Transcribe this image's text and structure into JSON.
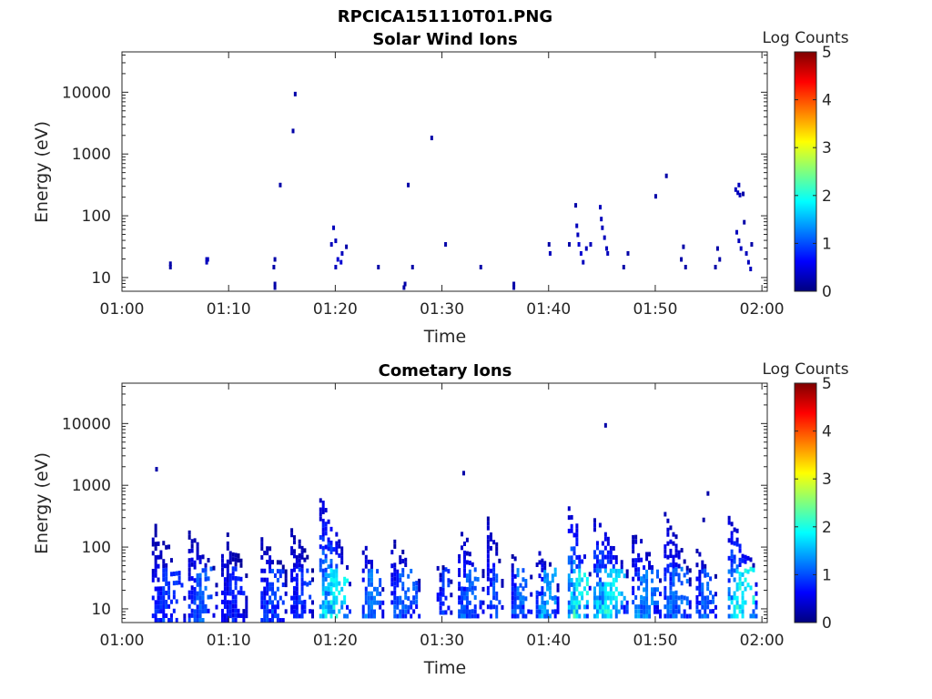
{
  "figure_title": "RPCICA151110T01.PNG",
  "colormap_stops": [
    "#00007f",
    "#0000ff",
    "#007fff",
    "#00ffff",
    "#7fff7f",
    "#ffff00",
    "#ff7f00",
    "#ff0000",
    "#7f0000"
  ],
  "chart_data": [
    {
      "type": "heatmap",
      "title": "Solar Wind Ions",
      "xlabel": "Time",
      "ylabel": "Energy (eV)",
      "x_ticks": [
        "01:00",
        "01:10",
        "01:20",
        "01:30",
        "01:40",
        "01:50",
        "02:00"
      ],
      "x_tick_minutes": [
        0,
        10,
        20,
        30,
        40,
        50,
        60
      ],
      "y_ticks": [
        "10",
        "100",
        "1000",
        "10000"
      ],
      "y_tick_values": [
        10,
        100,
        1000,
        10000
      ],
      "y_scale": "log",
      "ylim": [
        6,
        45000
      ],
      "xlim_minutes": [
        0,
        60.5
      ],
      "colorbar": {
        "label": "Log Counts",
        "ticks": [
          "0",
          "1",
          "2",
          "3",
          "4",
          "5"
        ],
        "range": [
          0,
          5
        ]
      },
      "points": [
        {
          "t": 4.5,
          "e": 15,
          "v": 0.2
        },
        {
          "t": 4.5,
          "e": 17,
          "v": 0.2
        },
        {
          "t": 7.9,
          "e": 18,
          "v": 0.3
        },
        {
          "t": 8.0,
          "e": 20,
          "v": 0.3
        },
        {
          "t": 7.9,
          "e": 20,
          "v": 0.3
        },
        {
          "t": 14.2,
          "e": 15,
          "v": 0.2
        },
        {
          "t": 14.3,
          "e": 20,
          "v": 0.2
        },
        {
          "t": 14.3,
          "e": 8,
          "v": 0.2
        },
        {
          "t": 14.3,
          "e": 7,
          "v": 0.2
        },
        {
          "t": 14.8,
          "e": 320,
          "v": 0.2
        },
        {
          "t": 16.0,
          "e": 2400,
          "v": 0.2
        },
        {
          "t": 16.2,
          "e": 9500,
          "v": 0.2
        },
        {
          "t": 19.8,
          "e": 65,
          "v": 0.3
        },
        {
          "t": 19.6,
          "e": 35,
          "v": 0.3
        },
        {
          "t": 20.0,
          "e": 40,
          "v": 0.3
        },
        {
          "t": 20.2,
          "e": 20,
          "v": 0.4
        },
        {
          "t": 20.5,
          "e": 18,
          "v": 0.4
        },
        {
          "t": 20.0,
          "e": 15,
          "v": 0.3
        },
        {
          "t": 20.6,
          "e": 25,
          "v": 0.3
        },
        {
          "t": 21.0,
          "e": 32,
          "v": 0.2
        },
        {
          "t": 24.0,
          "e": 15,
          "v": 0.2
        },
        {
          "t": 26.5,
          "e": 8,
          "v": 0.2
        },
        {
          "t": 26.4,
          "e": 7,
          "v": 0.2
        },
        {
          "t": 26.8,
          "e": 320,
          "v": 0.2
        },
        {
          "t": 27.2,
          "e": 15,
          "v": 0.2
        },
        {
          "t": 29.0,
          "e": 1850,
          "v": 0.2
        },
        {
          "t": 30.3,
          "e": 35,
          "v": 0.2
        },
        {
          "t": 33.6,
          "e": 15,
          "v": 0.2
        },
        {
          "t": 36.7,
          "e": 8,
          "v": 0.2
        },
        {
          "t": 36.7,
          "e": 7,
          "v": 0.2
        },
        {
          "t": 40.0,
          "e": 35,
          "v": 0.2
        },
        {
          "t": 40.1,
          "e": 25,
          "v": 0.3
        },
        {
          "t": 41.9,
          "e": 35,
          "v": 0.2
        },
        {
          "t": 42.5,
          "e": 150,
          "v": 0.2
        },
        {
          "t": 42.6,
          "e": 70,
          "v": 0.3
        },
        {
          "t": 42.7,
          "e": 50,
          "v": 0.3
        },
        {
          "t": 42.8,
          "e": 35,
          "v": 0.4
        },
        {
          "t": 43.0,
          "e": 25,
          "v": 0.4
        },
        {
          "t": 43.2,
          "e": 18,
          "v": 0.3
        },
        {
          "t": 43.5,
          "e": 30,
          "v": 0.3
        },
        {
          "t": 43.9,
          "e": 35,
          "v": 0.3
        },
        {
          "t": 44.8,
          "e": 140,
          "v": 0.3
        },
        {
          "t": 44.9,
          "e": 90,
          "v": 0.3
        },
        {
          "t": 45.0,
          "e": 65,
          "v": 0.3
        },
        {
          "t": 45.2,
          "e": 45,
          "v": 0.3
        },
        {
          "t": 45.4,
          "e": 30,
          "v": 0.3
        },
        {
          "t": 45.5,
          "e": 25,
          "v": 0.3
        },
        {
          "t": 47.0,
          "e": 15,
          "v": 0.2
        },
        {
          "t": 47.4,
          "e": 25,
          "v": 0.2
        },
        {
          "t": 50.0,
          "e": 210,
          "v": 0.2
        },
        {
          "t": 51.0,
          "e": 450,
          "v": 0.2
        },
        {
          "t": 52.4,
          "e": 20,
          "v": 0.2
        },
        {
          "t": 52.6,
          "e": 32,
          "v": 0.2
        },
        {
          "t": 52.8,
          "e": 15,
          "v": 0.2
        },
        {
          "t": 55.8,
          "e": 30,
          "v": 0.2
        },
        {
          "t": 56.0,
          "e": 20,
          "v": 0.2
        },
        {
          "t": 55.6,
          "e": 15,
          "v": 0.2
        },
        {
          "t": 57.5,
          "e": 270,
          "v": 0.3
        },
        {
          "t": 57.7,
          "e": 240,
          "v": 0.3
        },
        {
          "t": 57.9,
          "e": 220,
          "v": 0.3
        },
        {
          "t": 57.8,
          "e": 320,
          "v": 0.3
        },
        {
          "t": 58.2,
          "e": 230,
          "v": 0.2
        },
        {
          "t": 57.6,
          "e": 55,
          "v": 0.3
        },
        {
          "t": 57.8,
          "e": 40,
          "v": 0.3
        },
        {
          "t": 58.0,
          "e": 30,
          "v": 0.3
        },
        {
          "t": 58.3,
          "e": 80,
          "v": 0.2
        },
        {
          "t": 58.5,
          "e": 25,
          "v": 0.3
        },
        {
          "t": 58.7,
          "e": 18,
          "v": 0.3
        },
        {
          "t": 58.9,
          "e": 14,
          "v": 0.3
        },
        {
          "t": 59.0,
          "e": 35,
          "v": 0.2
        }
      ]
    },
    {
      "type": "heatmap",
      "title": "Cometary Ions",
      "xlabel": "Time",
      "ylabel": "Energy (eV)",
      "x_ticks": [
        "01:00",
        "01:10",
        "01:20",
        "01:30",
        "01:40",
        "01:50",
        "02:00"
      ],
      "x_tick_minutes": [
        0,
        10,
        20,
        30,
        40,
        50,
        60
      ],
      "y_ticks": [
        "10",
        "100",
        "1000",
        "10000"
      ],
      "y_tick_values": [
        10,
        100,
        1000,
        10000
      ],
      "y_scale": "log",
      "ylim": [
        6,
        45000
      ],
      "xlim_minutes": [
        0,
        60.5
      ],
      "colorbar": {
        "label": "Log Counts",
        "ticks": [
          "0",
          "1",
          "2",
          "3",
          "4",
          "5"
        ],
        "range": [
          0,
          5
        ]
      },
      "bursts": [
        {
          "t0": 2.8,
          "t1": 6.0,
          "e_lo": 6,
          "e_hi": 300,
          "peak": 0.9
        },
        {
          "t0": 6.2,
          "t1": 9.0,
          "e_lo": 6,
          "e_hi": 200,
          "peak": 1.1
        },
        {
          "t0": 9.3,
          "t1": 11.8,
          "e_lo": 6,
          "e_hi": 280,
          "peak": 0.8
        },
        {
          "t0": 13.0,
          "t1": 15.5,
          "e_lo": 6,
          "e_hi": 220,
          "peak": 1.0
        },
        {
          "t0": 15.8,
          "t1": 18.0,
          "e_lo": 7,
          "e_hi": 380,
          "peak": 0.9
        },
        {
          "t0": 18.5,
          "t1": 21.5,
          "e_lo": 7,
          "e_hi": 1000,
          "peak": 1.8
        },
        {
          "t0": 22.5,
          "t1": 24.6,
          "e_lo": 7,
          "e_hi": 160,
          "peak": 1.2
        },
        {
          "t0": 25.2,
          "t1": 28.0,
          "e_lo": 7,
          "e_hi": 160,
          "peak": 1.1
        },
        {
          "t0": 29.5,
          "t1": 31.0,
          "e_lo": 8,
          "e_hi": 60,
          "peak": 0.9
        },
        {
          "t0": 31.5,
          "t1": 34.0,
          "e_lo": 7,
          "e_hi": 280,
          "peak": 1.1
        },
        {
          "t0": 34.2,
          "t1": 35.8,
          "e_lo": 7,
          "e_hi": 550,
          "peak": 1.0
        },
        {
          "t0": 36.5,
          "t1": 38.5,
          "e_lo": 7,
          "e_hi": 80,
          "peak": 1.2
        },
        {
          "t0": 38.8,
          "t1": 41.0,
          "e_lo": 7,
          "e_hi": 100,
          "peak": 1.4
        },
        {
          "t0": 41.8,
          "t1": 44.0,
          "e_lo": 7,
          "e_hi": 750,
          "peak": 1.9
        },
        {
          "t0": 44.2,
          "t1": 47.5,
          "e_lo": 7,
          "e_hi": 380,
          "peak": 1.8
        },
        {
          "t0": 47.8,
          "t1": 50.6,
          "e_lo": 7,
          "e_hi": 240,
          "peak": 1.3
        },
        {
          "t0": 50.8,
          "t1": 53.4,
          "e_lo": 7,
          "e_hi": 500,
          "peak": 1.2
        },
        {
          "t0": 53.8,
          "t1": 55.8,
          "e_lo": 7,
          "e_hi": 120,
          "peak": 1.1
        },
        {
          "t0": 56.8,
          "t1": 59.6,
          "e_lo": 7,
          "e_hi": 420,
          "peak": 1.9
        }
      ],
      "points": [
        {
          "t": 3.2,
          "e": 1850,
          "v": 0.2
        },
        {
          "t": 45.3,
          "e": 9500,
          "v": 0.2
        },
        {
          "t": 32.0,
          "e": 1600,
          "v": 0.2
        },
        {
          "t": 54.9,
          "e": 750,
          "v": 0.2
        },
        {
          "t": 54.5,
          "e": 280,
          "v": 0.2
        }
      ]
    }
  ]
}
